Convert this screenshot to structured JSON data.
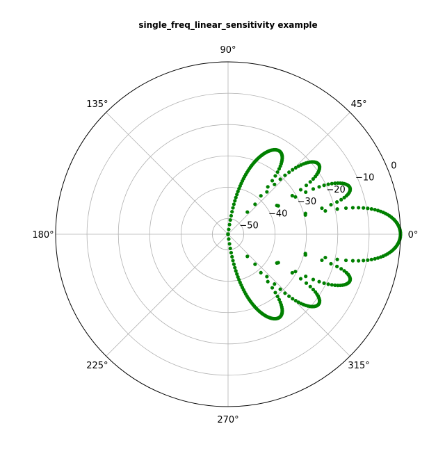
{
  "chart_data": {
    "type": "scatter",
    "projection": "polar",
    "title": "single_freq_linear_sensitivity example",
    "xlabel": "",
    "ylabel": "",
    "theta_ticks": [
      "0°",
      "45°",
      "90°",
      "135°",
      "180°",
      "225°",
      "270°",
      "315°"
    ],
    "theta_tick_degrees": [
      0,
      45,
      90,
      135,
      180,
      225,
      270,
      315
    ],
    "r_ticks": [
      "−50",
      "−40",
      "−30",
      "−20",
      "−10",
      "0"
    ],
    "r_tick_values": [
      -50,
      -40,
      -30,
      -20,
      -10,
      0
    ],
    "rlim": [
      -55,
      0
    ],
    "r_label_angle_deg": 22.5,
    "grid": true,
    "series": [
      {
        "color": "#008000",
        "marker": "circle",
        "model": {
          "description_only_for_rendering": false,
          "theta_deg_range": [
            -90,
            90
          ],
          "points": 361,
          "floor_db": -55
        }
      }
    ]
  }
}
